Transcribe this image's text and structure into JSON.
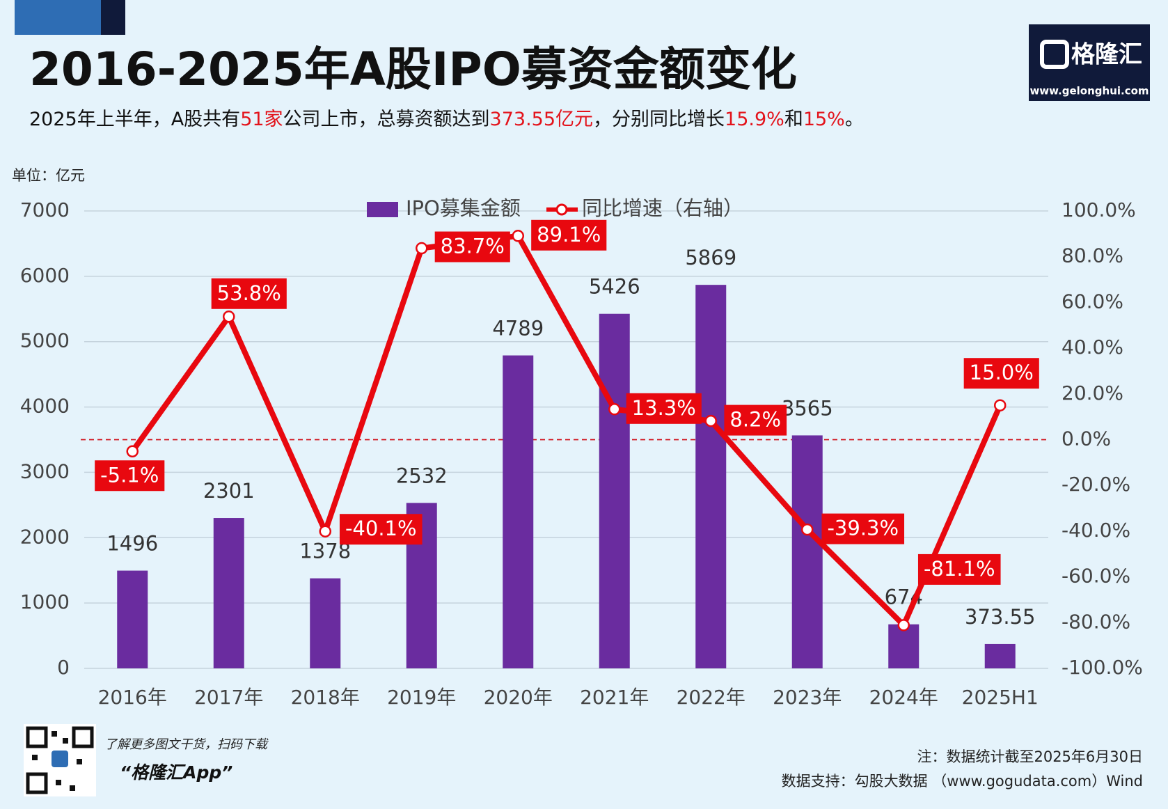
{
  "header": {
    "title": "2016-2025年A股IPO募资金额变化",
    "subtitle": [
      "2025年上半年，A股共有",
      "51家",
      "公司上市，总募资额达到",
      "373.55亿元",
      "，分别同比增长",
      "15.9%",
      "和",
      "15%",
      "。"
    ]
  },
  "logo": {
    "name": "格隆汇",
    "url": "www.gelonghui.com"
  },
  "chart_data": {
    "type": "bar",
    "unit_label": "单位：亿元",
    "categories": [
      "2016年",
      "2017年",
      "2018年",
      "2019年",
      "2020年",
      "2021年",
      "2022年",
      "2023年",
      "2024年",
      "2025H1"
    ],
    "series": [
      {
        "name": "IPO募集金额",
        "type": "bar",
        "color": "#6a2c9f",
        "values": [
          1496,
          2301,
          1378,
          2532,
          4789,
          5426,
          5869,
          3565,
          674,
          373.55
        ]
      },
      {
        "name": "同比增速（右轴）",
        "type": "line",
        "axis": "y2",
        "color": "#e8080f",
        "values": [
          -5.1,
          53.8,
          -40.1,
          83.7,
          89.1,
          13.3,
          8.2,
          -39.3,
          -81.1,
          15.0
        ],
        "value_labels": [
          "-5.1%",
          "53.8%",
          "-40.1%",
          "83.7%",
          "89.1%",
          "13.3%",
          "8.2%",
          "-39.3%",
          "-81.1%",
          "15.0%"
        ]
      }
    ],
    "ylim": [
      0,
      7000
    ],
    "yticks": [
      0,
      1000,
      2000,
      3000,
      4000,
      5000,
      6000,
      7000
    ],
    "y2lim": [
      -100,
      100
    ],
    "y2ticks": [
      {
        "value": -100,
        "label": "-100.0%"
      },
      {
        "value": -80,
        "label": "-80.0%"
      },
      {
        "value": -60,
        "label": "-60.0%"
      },
      {
        "value": -40,
        "label": "-40.0%"
      },
      {
        "value": -20,
        "label": "-20.0%"
      },
      {
        "value": 0,
        "label": "0.0%"
      },
      {
        "value": 20,
        "label": "20.0%"
      },
      {
        "value": 40,
        "label": "40.0%"
      },
      {
        "value": 60,
        "label": "60.0%"
      },
      {
        "value": 80,
        "label": "80.0%"
      },
      {
        "value": 100,
        "label": "100.0%"
      }
    ],
    "grid": true,
    "y2_reference_line": 0
  },
  "footer": {
    "qr_caption": "了解更多图文干货，扫码下载",
    "app_name": "“格隆汇App”",
    "note": "注：数据统计截至2025年6月30日",
    "source": "数据支持：勾股大数据 （www.gogudata.com）Wind"
  }
}
